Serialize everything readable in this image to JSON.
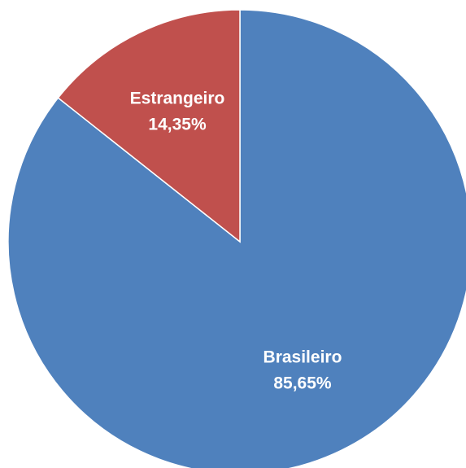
{
  "chart_data": {
    "type": "pie",
    "categories": [
      "Brasileiro",
      "Estrangeiro"
    ],
    "values": [
      85.65,
      14.35
    ],
    "value_labels": [
      "85,65%",
      "14,35%"
    ],
    "colors": [
      "#4f81bd",
      "#c0504d"
    ]
  }
}
